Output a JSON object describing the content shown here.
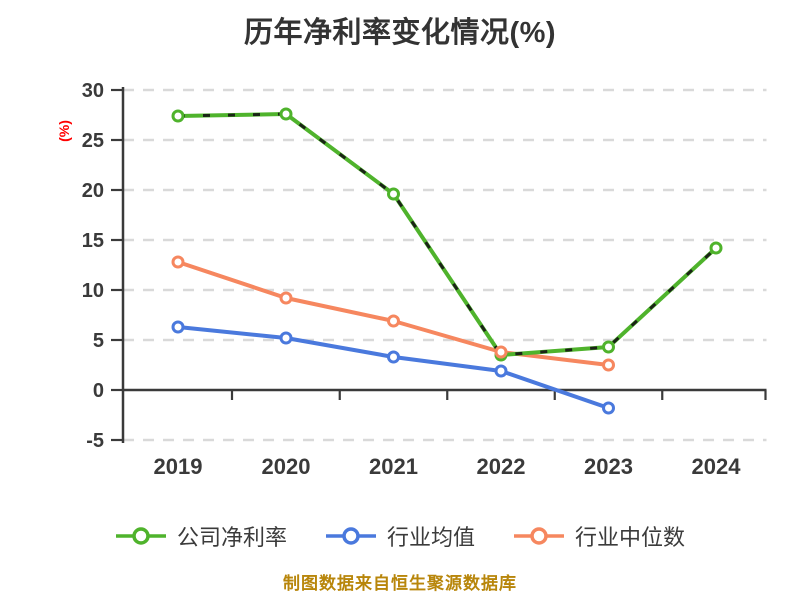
{
  "chart_data": {
    "type": "line",
    "title": "历年净利率变化情况(%)",
    "ylabel": "(%)",
    "footer": "制图数据来自恒生聚源数据库",
    "categories": [
      "2019",
      "2020",
      "2021",
      "2022",
      "2023",
      "2024"
    ],
    "yticks": [
      30,
      25,
      20,
      15,
      10,
      5,
      0,
      -5
    ],
    "ylim": [
      -5,
      30
    ],
    "grid": "horizontal-dashed",
    "legend_position": "bottom",
    "series": [
      {
        "key": "company-net-margin",
        "name": "公司净利率",
        "color": "#4fb32c",
        "marker": "open-circle",
        "values": [
          27.4,
          27.6,
          19.6,
          3.5,
          4.3,
          14.2
        ]
      },
      {
        "key": "industry-average",
        "name": "行业均值",
        "color": "#4a79dd",
        "marker": "open-circle",
        "values": [
          6.3,
          5.2,
          3.3,
          1.9,
          -1.8,
          null
        ]
      },
      {
        "key": "industry-median",
        "name": "行业中位数",
        "color": "#f6875f",
        "marker": "open-circle",
        "values": [
          12.8,
          9.2,
          6.9,
          3.8,
          2.5,
          null
        ]
      }
    ]
  },
  "styles": {
    "title_color": "#333333",
    "axis_color": "#3a3a3a",
    "grid_color": "#d9d9d9",
    "ylabel_color": "#ff0000",
    "footer_color": "#b8860b",
    "overlay_dash_color": "#141414",
    "background": "#ffffff"
  }
}
